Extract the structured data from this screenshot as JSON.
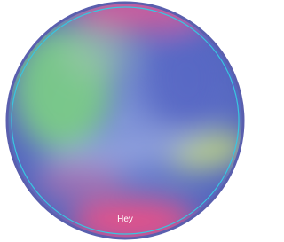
{
  "orb": {
    "label": "Hey"
  }
}
